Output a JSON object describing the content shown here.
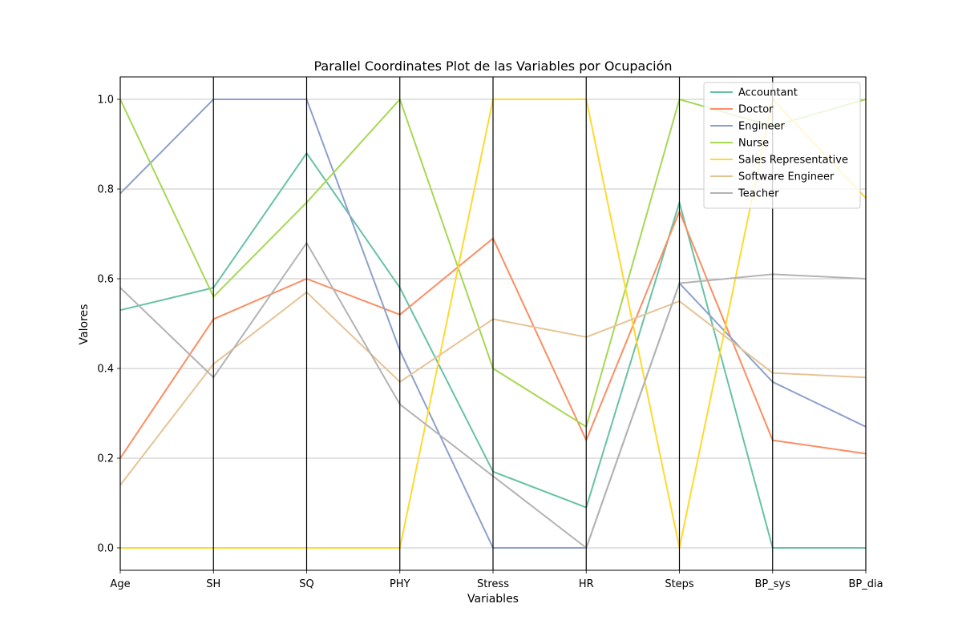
{
  "chart_data": {
    "type": "line",
    "title": "Parallel Coordinates Plot de las Variables por Ocupación",
    "xlabel": "Variables",
    "ylabel": "Valores",
    "categories": [
      "Age",
      "SH",
      "SQ",
      "PHY",
      "Stress",
      "HR",
      "Steps",
      "BP_sys",
      "BP_dia"
    ],
    "ylim": [
      -0.05,
      1.05
    ],
    "yticks": [
      "0.0",
      "0.2",
      "0.4",
      "0.6",
      "0.8",
      "1.0"
    ],
    "grid": true,
    "legend_position": "top-right",
    "series": [
      {
        "name": "Accountant",
        "color": "#66c2a5",
        "values": [
          0.53,
          0.58,
          0.88,
          0.58,
          0.17,
          0.09,
          0.77,
          0.0,
          0.0
        ]
      },
      {
        "name": "Doctor",
        "color": "#fc8d62",
        "values": [
          0.2,
          0.51,
          0.6,
          0.52,
          0.69,
          0.24,
          0.75,
          0.24,
          0.21
        ]
      },
      {
        "name": "Engineer",
        "color": "#8da0cb",
        "values": [
          0.79,
          1.0,
          1.0,
          0.44,
          0.0,
          0.0,
          0.59,
          0.37,
          0.27
        ]
      },
      {
        "name": "Nurse",
        "color": "#a6d854",
        "values": [
          1.0,
          0.56,
          0.77,
          1.0,
          0.4,
          0.27,
          1.0,
          0.94,
          1.0
        ]
      },
      {
        "name": "Sales Representative",
        "color": "#ffd92f",
        "values": [
          0.0,
          0.0,
          0.0,
          0.0,
          1.0,
          1.0,
          0.0,
          1.0,
          0.78
        ]
      },
      {
        "name": "Software Engineer",
        "color": "#e5c494",
        "values": [
          0.14,
          0.41,
          0.57,
          0.37,
          0.51,
          0.47,
          0.55,
          0.39,
          0.38
        ]
      },
      {
        "name": "Teacher",
        "color": "#b3b3b3",
        "values": [
          0.58,
          0.38,
          0.68,
          0.32,
          0.16,
          0.0,
          0.59,
          0.61,
          0.6
        ]
      }
    ]
  }
}
